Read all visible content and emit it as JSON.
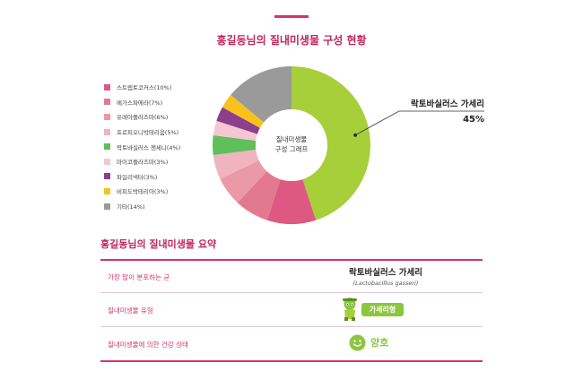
{
  "chart_title": "홍길동님의 질내미생물 구성 현황",
  "chart_data": {
    "type": "pie",
    "title": "홍길동님의 질내미생물 구성 현황",
    "center_label": [
      "질내미생물",
      "구성 그래프"
    ],
    "slices": [
      {
        "name": "락토바실러스 가세리",
        "value": 45,
        "color": "#a6cf3a"
      },
      {
        "name": "스트렙토코커스",
        "value": 10,
        "color": "#dd5883"
      },
      {
        "name": "메가스파에라",
        "value": 7,
        "color": "#e3798f"
      },
      {
        "name": "유레아플라즈마",
        "value": 6,
        "color": "#ea9aa7"
      },
      {
        "name": "프로피오니박테리움",
        "value": 5,
        "color": "#f0b4bf"
      },
      {
        "name": "락토바실러스 젠세니",
        "value": 4,
        "color": "#5fbf5a"
      },
      {
        "name": "마이코플라즈마",
        "value": 3,
        "color": "#f5c7d2"
      },
      {
        "name": "파일리넥터",
        "value": 3,
        "color": "#8c3f8c"
      },
      {
        "name": "비피도박테리아",
        "value": 3,
        "color": "#f7c21b"
      },
      {
        "name": "기타",
        "value": 14,
        "color": "#9a9a9a"
      }
    ],
    "legend": [
      {
        "label": "스트렙토코커스(10%)",
        "color": "#dd5883"
      },
      {
        "label": "메가스파에라(7%)",
        "color": "#e3798f"
      },
      {
        "label": "유레아플라즈마(6%)",
        "color": "#ea9aa7"
      },
      {
        "label": "프로피오니박테리움(5%)",
        "color": "#f0b4bf"
      },
      {
        "label": "락토바실러스 젠세니(4%)",
        "color": "#5fbf5a"
      },
      {
        "label": "마이코플라즈마(3%)",
        "color": "#f5c7d2"
      },
      {
        "label": "파일리넥터(3%)",
        "color": "#8c3f8c"
      },
      {
        "label": "비피도박테리아(3%)",
        "color": "#f7c21b"
      },
      {
        "label": "기타(14%)",
        "color": "#9a9a9a"
      }
    ],
    "legend_position": "left",
    "callout": {
      "name": "락토바실러스 가세리",
      "value": "45%"
    }
  },
  "summary": {
    "title": "홍길동님의 질내미생물 요약",
    "rows": [
      {
        "label": "가장 많이 분포하는 균",
        "value": "락토바실러스 가세리",
        "sub": "(Lactobacillus gasseri)"
      },
      {
        "label": "질내미생물 유형",
        "value": "가세리형"
      },
      {
        "label": "질내미생물에 의한 건강 상태",
        "value": "양호"
      }
    ]
  },
  "colors": {
    "accent": "#d6336c",
    "good": "#8cc63f"
  }
}
